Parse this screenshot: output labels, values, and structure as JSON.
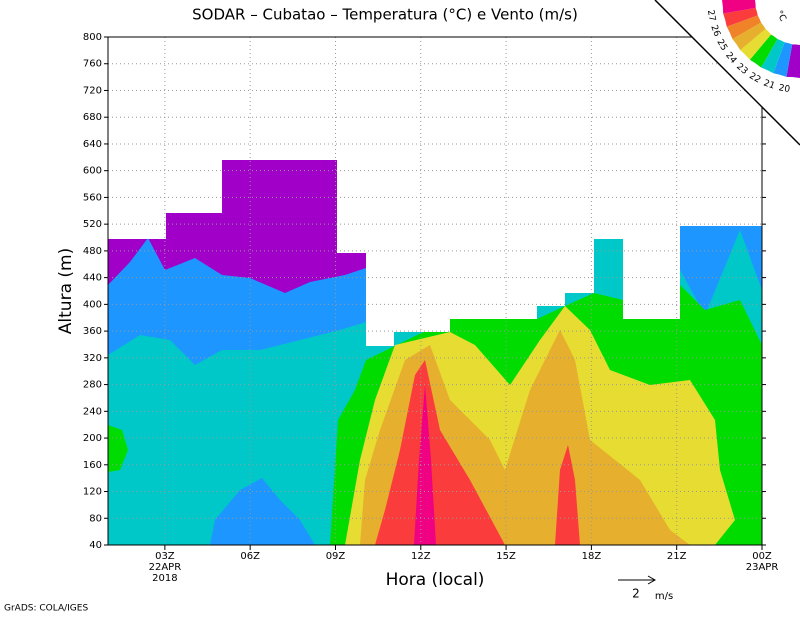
{
  "chart_data": {
    "type": "contour",
    "title": "SODAR – Cubatao – Temperatura (°C) e Vento (m/s)",
    "xlabel": "Hora (local)",
    "ylabel": "Altura (m)",
    "xlim": [
      1,
      24
    ],
    "xticks": [
      {
        "value": 3,
        "label": "03Z"
      },
      {
        "value": 6,
        "label": "06Z"
      },
      {
        "value": 9,
        "label": "09Z"
      },
      {
        "value": 12,
        "label": "12Z"
      },
      {
        "value": 15,
        "label": "15Z"
      },
      {
        "value": 18,
        "label": "18Z"
      },
      {
        "value": 21,
        "label": "21Z"
      },
      {
        "value": 24,
        "label": "00Z"
      }
    ],
    "date_labels": [
      {
        "x": 3,
        "lines": [
          "22APR",
          "2018"
        ]
      },
      {
        "x": 24,
        "lines": [
          "23APR"
        ]
      }
    ],
    "ylim": [
      40,
      800
    ],
    "yticks": [
      40,
      80,
      120,
      160,
      200,
      240,
      280,
      320,
      360,
      400,
      440,
      480,
      520,
      560,
      600,
      640,
      680,
      720,
      760,
      800
    ],
    "grid": true,
    "colorbar": {
      "levels": [
        20,
        21,
        22,
        23,
        24,
        25,
        26,
        27
      ],
      "colors": [
        "#a000c8",
        "#1e96ff",
        "#00c8c8",
        "#00dc00",
        "#e6dc32",
        "#e6af2d",
        "#f08228",
        "#fa3c3c",
        "#f00082"
      ],
      "unit": "°C"
    },
    "reference_vector": {
      "value": 2,
      "unit": "m/s"
    },
    "credit": "GrADS: COLA/IGES"
  }
}
